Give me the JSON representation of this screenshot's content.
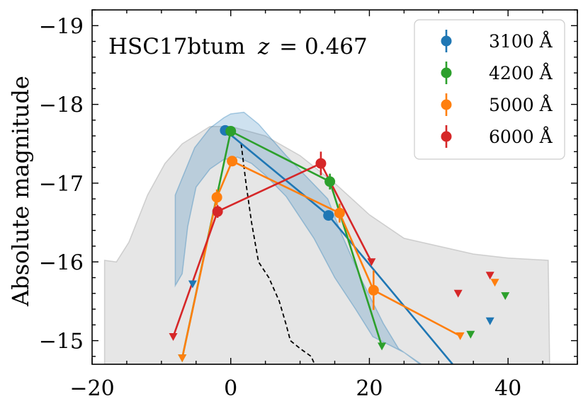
{
  "chart_data": {
    "type": "line",
    "annotation": {
      "name": "HSC17btum",
      "z_label": "z",
      "z_value": "= 0.467"
    },
    "xlabel": "",
    "ylabel": "Absolute magnitude",
    "xlim": [
      -20,
      50
    ],
    "ylim": [
      -14.7,
      -19.2
    ],
    "y_inverted": true,
    "xticks": [
      -20,
      0,
      20,
      40
    ],
    "xtick_labels": [
      "−20",
      "0",
      "20",
      "40"
    ],
    "yticks": [
      -15,
      -16,
      -17,
      -18,
      -19
    ],
    "ytick_labels": [
      "−15",
      "−16",
      "−17",
      "−18",
      "−19"
    ],
    "grid": false,
    "legend_position": "top-right",
    "series": [
      {
        "name": "3100 Å",
        "color": "#1f77b4",
        "line": [
          [
            -0.8,
            -17.67
          ],
          [
            14.1,
            -16.59
          ],
          [
            32,
            -14.7
          ]
        ],
        "points": [
          [
            -0.8,
            -17.67,
            0.05
          ],
          [
            14.1,
            -16.59,
            0.06
          ]
        ],
        "limits": [
          [
            -5.5,
            -15.72
          ],
          [
            37.4,
            -15.25
          ]
        ]
      },
      {
        "name": "4200 Å",
        "color": "#2ca02c",
        "line": [
          [
            -7,
            -14.78
          ],
          [
            0,
            -17.66
          ],
          [
            14.3,
            -17.02
          ],
          [
            21.8,
            -14.93
          ]
        ],
        "points": [
          [
            0,
            -17.66,
            0.05
          ],
          [
            14.3,
            -17.02,
            0.1
          ]
        ],
        "limits": [
          [
            -7,
            -14.78
          ],
          [
            21.8,
            -14.93
          ],
          [
            34.6,
            -15.08
          ],
          [
            39.6,
            -15.57
          ]
        ]
      },
      {
        "name": "5000 Å",
        "color": "#ff7f0e",
        "line": [
          [
            -7,
            -14.78
          ],
          [
            -2,
            -16.82
          ],
          [
            0.2,
            -17.28
          ],
          [
            15.7,
            -16.62
          ],
          [
            20.6,
            -15.64
          ],
          [
            33.1,
            -15.06
          ]
        ],
        "points": [
          [
            -2,
            -16.82,
            0.1
          ],
          [
            0.2,
            -17.28,
            0.05
          ],
          [
            15.7,
            -16.62,
            0.12
          ],
          [
            20.6,
            -15.64,
            0.25
          ]
        ],
        "limits": [
          [
            -7,
            -14.78
          ],
          [
            33.1,
            -15.06
          ],
          [
            38.1,
            -15.74
          ]
        ]
      },
      {
        "name": "6000 Å",
        "color": "#d62728",
        "line": [
          [
            -8.3,
            -15.05
          ],
          [
            -1.9,
            -16.64
          ],
          [
            13,
            -17.25
          ],
          [
            20.3,
            -16.0
          ]
        ],
        "points": [
          [
            -1.9,
            -16.64,
            0.08
          ],
          [
            13,
            -17.25,
            0.15
          ]
        ],
        "limits": [
          [
            -8.3,
            -15.05
          ],
          [
            20.3,
            -16.0
          ],
          [
            32.8,
            -15.6
          ],
          [
            37.4,
            -15.83
          ]
        ]
      }
    ],
    "dashed_curve": [
      [
        1.5,
        -17.5
      ],
      [
        2.2,
        -17.0
      ],
      [
        3,
        -16.5
      ],
      [
        4,
        -16.0
      ],
      [
        5.5,
        -15.8
      ],
      [
        7,
        -15.5
      ],
      [
        8,
        -15.2
      ],
      [
        8.6,
        -15.0
      ],
      [
        10,
        -14.9
      ],
      [
        11.6,
        -14.8
      ],
      [
        12.1,
        -14.7
      ]
    ],
    "shaded_bands": [
      {
        "color": "#8c8c8c",
        "upper": [
          [
            -18.2,
            -16.02
          ],
          [
            -16.5,
            -16.0
          ],
          [
            -14.7,
            -16.25
          ],
          [
            -12,
            -16.85
          ],
          [
            -9.5,
            -17.25
          ],
          [
            -7,
            -17.5
          ],
          [
            -3,
            -17.72
          ],
          [
            0,
            -17.72
          ],
          [
            5,
            -17.6
          ],
          [
            10,
            -17.35
          ],
          [
            15,
            -17.0
          ],
          [
            20,
            -16.6
          ],
          [
            25,
            -16.3
          ],
          [
            30,
            -16.2
          ],
          [
            35,
            -16.1
          ],
          [
            40,
            -16.05
          ],
          [
            45.8,
            -16.02
          ]
        ],
        "lower": [
          [
            46,
            -14.7
          ],
          [
            -15.3,
            -14.7
          ],
          [
            -18.2,
            -14.7
          ]
        ]
      },
      {
        "color": "#1f77b4",
        "upper": [
          [
            -8,
            -16.85
          ],
          [
            -5.2,
            -17.45
          ],
          [
            -3,
            -17.7
          ],
          [
            -1,
            -17.83
          ],
          [
            0,
            -17.88
          ],
          [
            1.9,
            -17.9
          ],
          [
            4,
            -17.75
          ],
          [
            6,
            -17.55
          ],
          [
            8,
            -17.35
          ],
          [
            10.5,
            -17.12
          ],
          [
            14,
            -16.8
          ],
          [
            16,
            -16.35
          ],
          [
            19,
            -15.75
          ],
          [
            22,
            -15.22
          ],
          [
            24.2,
            -14.9
          ],
          [
            27.5,
            -14.7
          ]
        ],
        "lower": [
          [
            27.3,
            -14.7
          ],
          [
            25,
            -14.85
          ],
          [
            20.5,
            -15.05
          ],
          [
            18,
            -15.4
          ],
          [
            15,
            -15.8
          ],
          [
            12,
            -16.3
          ],
          [
            8,
            -16.83
          ],
          [
            5,
            -17.1
          ],
          [
            3,
            -17.25
          ],
          [
            1,
            -17.33
          ],
          [
            -1,
            -17.3
          ],
          [
            -3,
            -17.18
          ],
          [
            -5,
            -16.95
          ],
          [
            -6.2,
            -16.45
          ],
          [
            -7,
            -15.85
          ],
          [
            -8,
            -15.7
          ]
        ]
      }
    ]
  }
}
